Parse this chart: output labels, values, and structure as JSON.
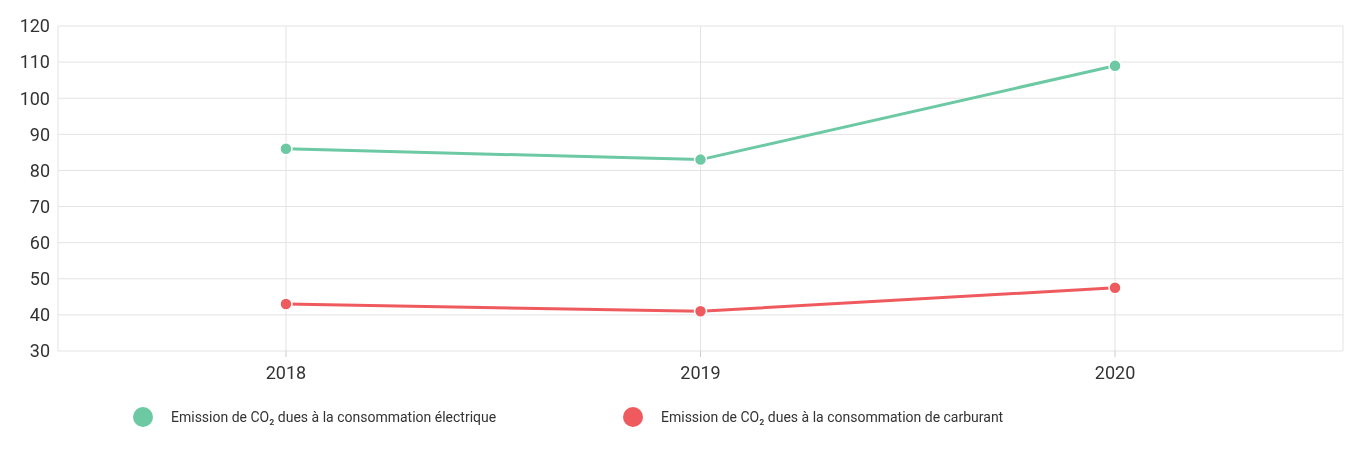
{
  "chart_data": {
    "type": "line",
    "categories": [
      "2018",
      "2019",
      "2020"
    ],
    "series": [
      {
        "name": "Emission de CO₂ dues à la consommation électrique",
        "color": "#6cc9a4",
        "values": [
          86,
          83,
          109
        ]
      },
      {
        "name": "Emission de CO₂ dues à la consommation de carburant",
        "color": "#ef5a5e",
        "values": [
          43,
          41,
          47.5
        ]
      }
    ],
    "ylim": [
      30,
      120
    ],
    "yticks": [
      30,
      40,
      50,
      60,
      70,
      80,
      90,
      100,
      110,
      120
    ],
    "grid": true,
    "legend": "bottom",
    "marker": "circle"
  }
}
